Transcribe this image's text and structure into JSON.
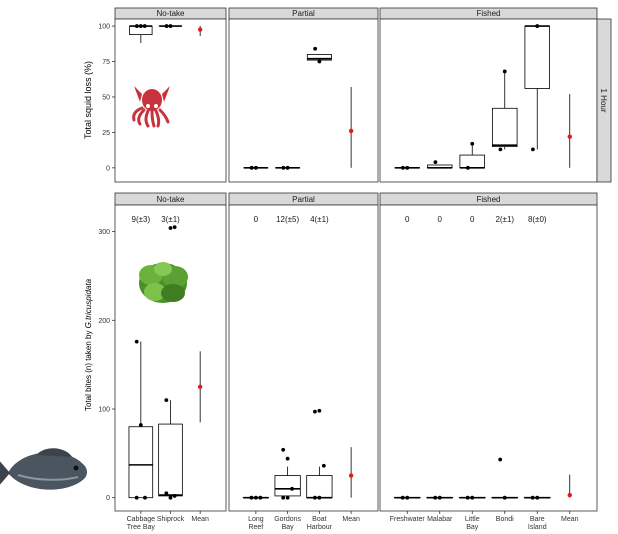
{
  "chart_data": [
    {
      "type": "boxplot",
      "panel_row": "1 Hour",
      "ylabel": "Total squid loss (%)",
      "ylim": [
        -10,
        105
      ],
      "yticks": [
        0,
        25,
        50,
        75,
        100
      ],
      "grid": false,
      "facets": [
        {
          "label": "No-take",
          "groups": [
            {
              "name": "Cabbage Tree Bay",
              "box": [
                88,
                94,
                100,
                100,
                100
              ],
              "outliers": [
                88
              ],
              "points": [
                100,
                100,
                100
              ]
            },
            {
              "name": "Shiprock",
              "box": [
                100,
                100,
                100,
                100,
                100
              ],
              "outliers": [],
              "points": [
                100,
                100
              ]
            },
            {
              "name": "Mean",
              "mean": 97.5,
              "range": [
                93,
                100
              ]
            }
          ]
        },
        {
          "label": "Partial",
          "groups": [
            {
              "name": "Long Reef",
              "box": [
                0,
                0,
                0,
                0,
                0
              ],
              "outliers": [],
              "points": [
                0,
                0
              ]
            },
            {
              "name": "Gordons Bay",
              "box": [
                0,
                0,
                0,
                0,
                0
              ],
              "outliers": [],
              "points": [
                0,
                0
              ]
            },
            {
              "name": "Boat Harbour",
              "box": [
                75,
                76,
                77,
                80,
                80
              ],
              "outliers": [
                84,
                75
              ],
              "points": [
                84,
                75
              ]
            },
            {
              "name": "Mean",
              "mean": 26,
              "range": [
                0,
                57
              ]
            }
          ]
        },
        {
          "label": "Fished",
          "groups": [
            {
              "name": "Freshwater",
              "box": [
                0,
                0,
                0,
                0,
                0
              ],
              "outliers": [],
              "points": [
                0,
                0
              ]
            },
            {
              "name": "Malabar",
              "box": [
                0,
                0,
                0,
                2,
                2
              ],
              "outliers": [
                4
              ],
              "points": [
                4
              ]
            },
            {
              "name": "Little Bay",
              "box": [
                0,
                0,
                0,
                9,
                17
              ],
              "outliers": [
                17
              ],
              "points": [
                0,
                17
              ]
            },
            {
              "name": "Bondi",
              "box": [
                13,
                15,
                16,
                42,
                68
              ],
              "outliers": [],
              "points": [
                13,
                68
              ]
            },
            {
              "name": "Bare Island",
              "box": [
                13,
                56,
                100,
                100,
                100
              ],
              "outliers": [],
              "points": [
                13,
                100
              ]
            },
            {
              "name": "Mean",
              "mean": 22,
              "range": [
                0,
                52
              ]
            }
          ]
        }
      ]
    },
    {
      "type": "boxplot",
      "panel_row": "",
      "ylabel_prefix": "Total bites (n) taken by ",
      "ylabel_species": "G.tricuspidata",
      "ylim": [
        -15,
        330
      ],
      "yticks": [
        0,
        100,
        200,
        300
      ],
      "grid": false,
      "facets": [
        {
          "label": "No-take",
          "groups": [
            {
              "name": "Cabbage Tree Bay",
              "name_lines": [
                "Cabbage",
                "Tree Bay"
              ],
              "count_label": "9(±3)",
              "box": [
                0,
                0,
                37,
                80,
                176
              ],
              "outliers": [],
              "points": [
                176,
                82,
                0,
                0
              ]
            },
            {
              "name": "Shiprock",
              "name_lines": [
                "Shiprock"
              ],
              "count_label": "3(±1)",
              "box": [
                0,
                2,
                3,
                83,
                110
              ],
              "outliers": [
                304,
                305
              ],
              "points": [
                110,
                0,
                2,
                5,
                304,
                305
              ]
            },
            {
              "name": "Mean",
              "name_lines": [
                "Mean"
              ],
              "count_label": "",
              "mean": 125,
              "range": [
                85,
                165
              ]
            }
          ]
        },
        {
          "label": "Partial",
          "groups": [
            {
              "name": "Long Reef",
              "name_lines": [
                "Long",
                "Reef"
              ],
              "count_label": "0",
              "box": [
                0,
                0,
                0,
                0,
                0
              ],
              "outliers": [],
              "points": [
                0,
                0,
                0
              ]
            },
            {
              "name": "Gordons Bay",
              "name_lines": [
                "Gordons",
                "Bay"
              ],
              "count_label": "12(±5)",
              "box": [
                0,
                2,
                10,
                25,
                35
              ],
              "outliers": [
                54
              ],
              "points": [
                54,
                44,
                10,
                0,
                0
              ]
            },
            {
              "name": "Boat Harbour",
              "name_lines": [
                "Boat",
                "Harbour"
              ],
              "count_label": "4(±1)",
              "box": [
                0,
                0,
                0,
                25,
                35
              ],
              "outliers": [
                97,
                98
              ],
              "points": [
                97,
                98,
                36,
                0,
                0
              ]
            },
            {
              "name": "Mean",
              "name_lines": [
                "Mean"
              ],
              "count_label": "",
              "mean": 25,
              "range": [
                0,
                57
              ]
            }
          ]
        },
        {
          "label": "Fished",
          "groups": [
            {
              "name": "Freshwater",
              "name_lines": [
                "Freshwater"
              ],
              "count_label": "0",
              "box": [
                0,
                0,
                0,
                0,
                0
              ],
              "outliers": [],
              "points": [
                0,
                0
              ]
            },
            {
              "name": "Malabar",
              "name_lines": [
                "Malabar"
              ],
              "count_label": "0",
              "box": [
                0,
                0,
                0,
                0,
                0
              ],
              "outliers": [],
              "points": [
                0,
                0
              ]
            },
            {
              "name": "Little Bay",
              "name_lines": [
                "Little",
                "Bay"
              ],
              "count_label": "0",
              "box": [
                0,
                0,
                0,
                0,
                0
              ],
              "outliers": [],
              "points": [
                0,
                0
              ]
            },
            {
              "name": "Bondi",
              "name_lines": [
                "Bondi"
              ],
              "count_label": "2(±1)",
              "box": [
                0,
                0,
                0,
                0,
                0
              ],
              "outliers": [
                43
              ],
              "points": [
                43,
                0
              ]
            },
            {
              "name": "Bare Island",
              "name_lines": [
                "Bare",
                "Island"
              ],
              "count_label": "8(±0)",
              "box": [
                0,
                0,
                0,
                0,
                0
              ],
              "outliers": [],
              "points": [
                0,
                0
              ]
            },
            {
              "name": "Mean",
              "name_lines": [
                "Mean"
              ],
              "count_label": "",
              "mean": 3,
              "range": [
                0,
                26
              ]
            }
          ]
        }
      ]
    }
  ],
  "colors": {
    "strip_bg": "#d9d9d9",
    "panel_border": "#333333",
    "mean_point": "#e31a1c",
    "box_line": "#000000",
    "squid": "#c8323c",
    "seaweed": "#4b8f2a",
    "fish": "#4a5560"
  },
  "images": [
    {
      "name": "squid-illustration"
    },
    {
      "name": "seaweed-illustration"
    },
    {
      "name": "fish-illustration"
    }
  ]
}
